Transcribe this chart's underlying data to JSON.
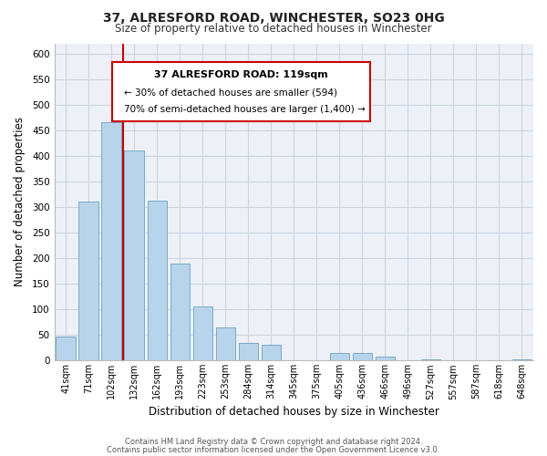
{
  "title": "37, ALRESFORD ROAD, WINCHESTER, SO23 0HG",
  "subtitle": "Size of property relative to detached houses in Winchester",
  "xlabel": "Distribution of detached houses by size in Winchester",
  "ylabel": "Number of detached properties",
  "bar_color": "#b8d4ea",
  "bar_edge_color": "#7aaac8",
  "vline_color": "#cc0000",
  "vline_x_index": 2,
  "categories": [
    "41sqm",
    "71sqm",
    "102sqm",
    "132sqm",
    "162sqm",
    "193sqm",
    "223sqm",
    "253sqm",
    "284sqm",
    "314sqm",
    "345sqm",
    "375sqm",
    "405sqm",
    "436sqm",
    "466sqm",
    "496sqm",
    "527sqm",
    "557sqm",
    "587sqm",
    "618sqm",
    "648sqm"
  ],
  "values": [
    47,
    310,
    465,
    410,
    313,
    190,
    105,
    65,
    35,
    30,
    0,
    0,
    14,
    14,
    8,
    0,
    3,
    0,
    0,
    0,
    2
  ],
  "ylim": [
    0,
    620
  ],
  "yticks": [
    0,
    50,
    100,
    150,
    200,
    250,
    300,
    350,
    400,
    450,
    500,
    550,
    600
  ],
  "annotation_title": "37 ALRESFORD ROAD: 119sqm",
  "annotation_line1": "← 30% of detached houses are smaller (594)",
  "annotation_line2": "70% of semi-detached houses are larger (1,400) →",
  "footer1": "Contains HM Land Registry data © Crown copyright and database right 2024.",
  "footer2": "Contains public sector information licensed under the Open Government Licence v3.0.",
  "grid_color": "#ccd4e0",
  "background_color": "#edf1f7"
}
